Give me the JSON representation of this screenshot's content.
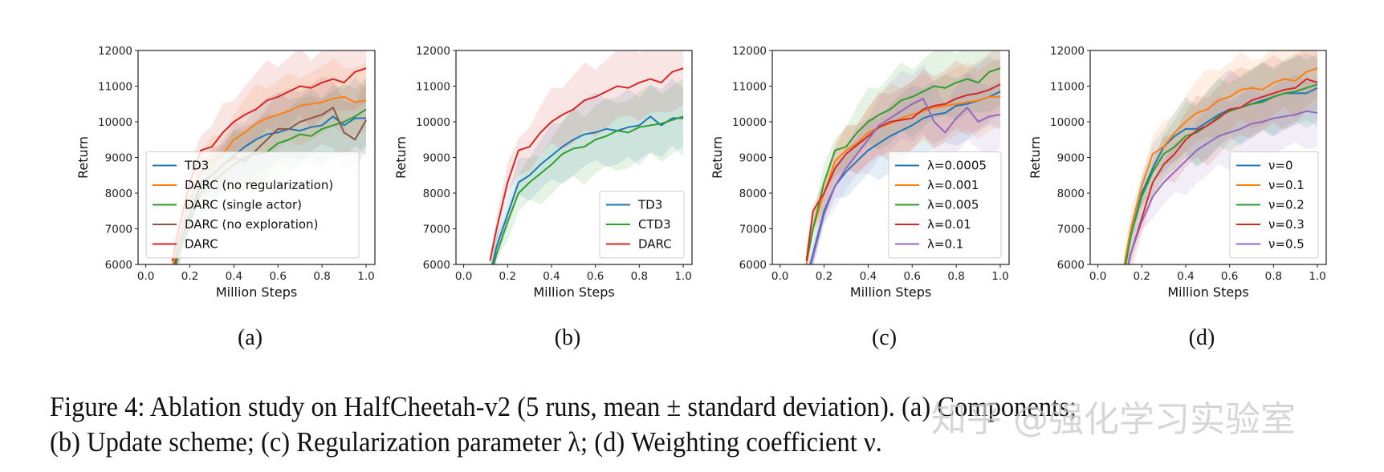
{
  "caption": {
    "line1": "Figure 4: Ablation study on HalfCheetah-v2 (5 runs, mean ± standard deviation). (a) Components;",
    "line2": "(b) Update scheme; (c) Regularization parameter λ; (d) Weighting coefficient ν."
  },
  "watermark": "知乎 @强化学习实验室",
  "colors": {
    "blue": "#1f77b4",
    "orange": "#ff7f0e",
    "green": "#2ca02c",
    "red": "#d62728",
    "brown": "#8c564b",
    "purple": "#9467bd"
  },
  "chart_data": [
    {
      "type": "line",
      "sublabel": "(a)",
      "xlabel": "Million Steps",
      "ylabel": "Return",
      "xlim": [
        -0.035,
        1.04
      ],
      "ylim": [
        6000,
        12000
      ],
      "x_ticks": [
        "0.0",
        "0.2",
        "0.4",
        "0.6",
        "0.8",
        "1.0"
      ],
      "y_ticks": [
        "6000",
        "7000",
        "8000",
        "9000",
        "10000",
        "11000",
        "12000"
      ],
      "legend": "lower-left",
      "band": "mean ± standard deviation",
      "x": [
        0.12,
        0.15,
        0.2,
        0.25,
        0.3,
        0.35,
        0.4,
        0.45,
        0.5,
        0.55,
        0.6,
        0.65,
        0.7,
        0.75,
        0.8,
        0.85,
        0.9,
        0.95,
        1.0
      ],
      "series": [
        {
          "name": "TD3",
          "color": "#1f77b4",
          "values": [
            5700,
            6500,
            7400,
            8300,
            8500,
            8800,
            9050,
            9300,
            9500,
            9650,
            9700,
            9800,
            9750,
            9850,
            9900,
            10150,
            9900,
            10100,
            10100
          ]
        },
        {
          "name": "DARC (no regularization)",
          "color": "#ff7f0e",
          "values": [
            5900,
            6700,
            7800,
            8600,
            8900,
            9100,
            9500,
            9700,
            9950,
            10100,
            10200,
            10300,
            10450,
            10500,
            10550,
            10650,
            10700,
            10550,
            10600
          ]
        },
        {
          "name": "DARC (single actor)",
          "color": "#2ca02c",
          "values": [
            5600,
            6300,
            7200,
            8000,
            8300,
            8550,
            8800,
            9000,
            9100,
            9150,
            9400,
            9500,
            9650,
            9600,
            9800,
            9900,
            10000,
            10150,
            10350
          ]
        },
        {
          "name": "DARC (no exploration)",
          "color": "#8c564b",
          "values": [
            5700,
            6500,
            7400,
            8200,
            8500,
            8800,
            9000,
            8900,
            9200,
            9500,
            9800,
            9800,
            10000,
            10100,
            10200,
            10400,
            9700,
            9500,
            10050
          ]
        },
        {
          "name": "DARC",
          "color": "#d62728",
          "values": [
            6100,
            7000,
            8300,
            9200,
            9300,
            9700,
            10000,
            10200,
            10350,
            10600,
            10700,
            10850,
            11000,
            10950,
            11100,
            11200,
            11100,
            11400,
            11500
          ]
        }
      ]
    },
    {
      "type": "line",
      "sublabel": "(b)",
      "xlabel": "Million Steps",
      "ylabel": "Return",
      "xlim": [
        -0.035,
        1.04
      ],
      "ylim": [
        6000,
        12000
      ],
      "x_ticks": [
        "0.0",
        "0.2",
        "0.4",
        "0.6",
        "0.8",
        "1.0"
      ],
      "y_ticks": [
        "6000",
        "7000",
        "8000",
        "9000",
        "10000",
        "11000",
        "12000"
      ],
      "legend": "lower-right",
      "band": "mean ± standard deviation",
      "x": [
        0.12,
        0.15,
        0.2,
        0.25,
        0.3,
        0.35,
        0.4,
        0.45,
        0.5,
        0.55,
        0.6,
        0.65,
        0.7,
        0.75,
        0.8,
        0.85,
        0.9,
        0.95,
        1.0
      ],
      "series": [
        {
          "name": "TD3",
          "color": "#1f77b4",
          "values": [
            5700,
            6500,
            7400,
            8300,
            8500,
            8800,
            9050,
            9300,
            9500,
            9650,
            9700,
            9800,
            9750,
            9850,
            9900,
            10150,
            9900,
            10100,
            10100
          ]
        },
        {
          "name": "CTD3",
          "color": "#2ca02c",
          "values": [
            5600,
            6300,
            7200,
            8000,
            8300,
            8550,
            8800,
            9100,
            9250,
            9300,
            9500,
            9600,
            9750,
            9700,
            9850,
            9900,
            9950,
            10050,
            10150
          ]
        },
        {
          "name": "DARC",
          "color": "#d62728",
          "values": [
            6100,
            7000,
            8300,
            9200,
            9300,
            9700,
            10000,
            10200,
            10350,
            10600,
            10700,
            10850,
            11000,
            10950,
            11100,
            11200,
            11100,
            11400,
            11500
          ]
        }
      ]
    },
    {
      "type": "line",
      "sublabel": "(c)",
      "xlabel": "Million Steps",
      "ylabel": "Return",
      "xlim": [
        -0.035,
        1.04
      ],
      "ylim": [
        6000,
        12000
      ],
      "x_ticks": [
        "0.0",
        "0.2",
        "0.4",
        "0.6",
        "0.8",
        "1.0"
      ],
      "y_ticks": [
        "6000",
        "7000",
        "8000",
        "9000",
        "10000",
        "11000",
        "12000"
      ],
      "legend": "lower-right",
      "band": "mean ± standard deviation",
      "x": [
        0.12,
        0.15,
        0.2,
        0.25,
        0.3,
        0.35,
        0.4,
        0.45,
        0.5,
        0.55,
        0.6,
        0.65,
        0.7,
        0.75,
        0.8,
        0.85,
        0.9,
        0.95,
        1.0
      ],
      "series": [
        {
          "name": "λ=0.0005",
          "color": "#1f77b4",
          "values": [
            5600,
            6300,
            7500,
            8200,
            8600,
            8900,
            9200,
            9400,
            9600,
            9750,
            9900,
            10100,
            10200,
            10250,
            10450,
            10500,
            10600,
            10700,
            10850
          ]
        },
        {
          "name": "λ=0.001",
          "color": "#ff7f0e",
          "values": [
            6000,
            7000,
            8000,
            8900,
            9200,
            9400,
            9700,
            9850,
            9950,
            10100,
            10200,
            10300,
            10400,
            10450,
            10500,
            10550,
            10600,
            10700,
            10700
          ]
        },
        {
          "name": "λ=0.005",
          "color": "#2ca02c",
          "values": [
            6100,
            7000,
            8300,
            9200,
            9300,
            9700,
            10000,
            10200,
            10350,
            10600,
            10700,
            10850,
            11000,
            10950,
            11100,
            11200,
            11100,
            11400,
            11500
          ]
        },
        {
          "name": "λ=0.01",
          "color": "#d62728",
          "values": [
            6100,
            7500,
            8000,
            8700,
            9100,
            9350,
            9600,
            9850,
            10000,
            10050,
            10100,
            10350,
            10450,
            10500,
            10650,
            10750,
            10800,
            10900,
            11050
          ]
        },
        {
          "name": "λ=0.1",
          "color": "#9467bd",
          "values": [
            5500,
            6200,
            7400,
            8200,
            8700,
            9100,
            9500,
            9900,
            10100,
            10300,
            10500,
            10650,
            10000,
            9700,
            10100,
            10400,
            10000,
            10150,
            10200
          ]
        }
      ]
    },
    {
      "type": "line",
      "sublabel": "(d)",
      "xlabel": "Million Steps",
      "ylabel": "Return",
      "xlim": [
        -0.035,
        1.04
      ],
      "ylim": [
        6000,
        12000
      ],
      "x_ticks": [
        "0.0",
        "0.2",
        "0.4",
        "0.6",
        "0.8",
        "1.0"
      ],
      "y_ticks": [
        "6000",
        "7000",
        "8000",
        "9000",
        "10000",
        "11000",
        "12000"
      ],
      "legend": "lower-right",
      "band": "mean ± standard deviation",
      "x": [
        0.12,
        0.15,
        0.2,
        0.25,
        0.3,
        0.35,
        0.4,
        0.45,
        0.5,
        0.55,
        0.6,
        0.65,
        0.7,
        0.75,
        0.8,
        0.85,
        0.9,
        0.95,
        1.0
      ],
      "series": [
        {
          "name": "ν=0",
          "color": "#1f77b4",
          "values": [
            5800,
            6800,
            8000,
            8700,
            9300,
            9600,
            9800,
            9800,
            10000,
            10200,
            10350,
            10400,
            10500,
            10600,
            10700,
            10800,
            10800,
            10800,
            10950
          ]
        },
        {
          "name": "ν=0.1",
          "color": "#ff7f0e",
          "values": [
            6000,
            7000,
            8200,
            9100,
            9300,
            9700,
            10000,
            10250,
            10350,
            10600,
            10700,
            10900,
            10950,
            10900,
            11100,
            11200,
            11150,
            11400,
            11500
          ]
        },
        {
          "name": "ν=0.2",
          "color": "#2ca02c",
          "values": [
            5800,
            6800,
            7900,
            8600,
            9100,
            9300,
            9600,
            9700,
            9900,
            10150,
            10300,
            10400,
            10500,
            10550,
            10700,
            10800,
            10850,
            10950,
            11050
          ]
        },
        {
          "name": "ν=0.3",
          "color": "#d62728",
          "values": [
            5500,
            6300,
            7300,
            8300,
            8800,
            9100,
            9500,
            9750,
            9900,
            10100,
            10350,
            10400,
            10600,
            10700,
            10800,
            10900,
            10950,
            11200,
            11100
          ]
        },
        {
          "name": "ν=0.5",
          "color": "#9467bd",
          "values": [
            5500,
            6300,
            7200,
            7900,
            8300,
            8600,
            8900,
            9200,
            9400,
            9600,
            9700,
            9800,
            9950,
            10000,
            10100,
            10150,
            10200,
            10300,
            10250
          ]
        }
      ]
    }
  ]
}
